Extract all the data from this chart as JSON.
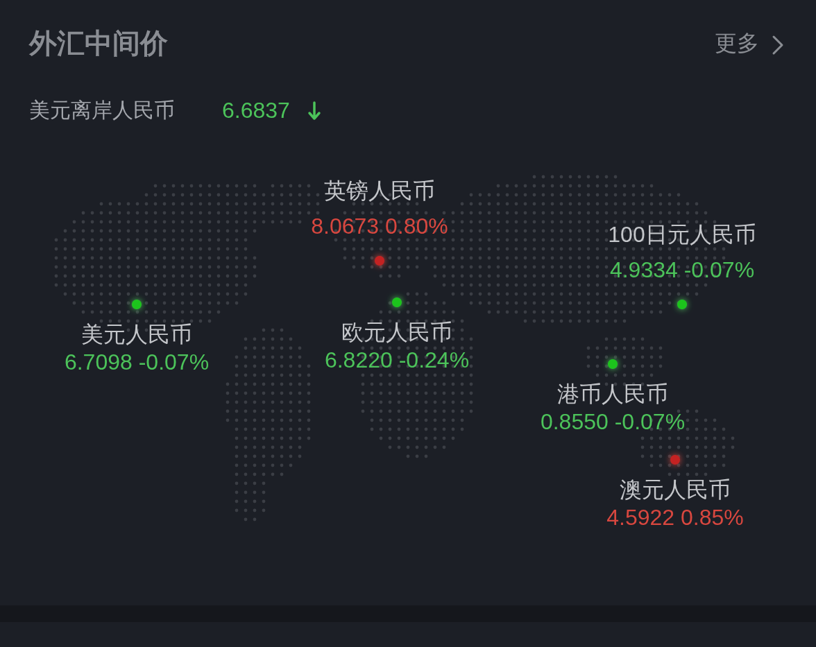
{
  "chart_data": {
    "type": "other",
    "title": "外汇中间价",
    "subtitle": "美元离岸人民币 6.6837",
    "annotations": [
      "更多"
    ],
    "categories": [
      "英镑人民币",
      "100日元人民币",
      "美元人民币",
      "欧元人民币",
      "港币人民币",
      "澳元人民币"
    ],
    "values": [
      8.0673,
      4.9334,
      6.7098,
      6.822,
      0.855,
      4.5922
    ],
    "value_labels": [
      "8.0673 0.80%",
      "4.9334 -0.07%",
      "6.7098 -0.07%",
      "6.8220 -0.24%",
      "0.8550 -0.07%",
      "4.5922 0.85%"
    ],
    "colors": [
      "#d8473f",
      "#4cc35a",
      "#4cc35a",
      "#4cc35a",
      "#4cc35a",
      "#d8473f"
    ]
  }
}
